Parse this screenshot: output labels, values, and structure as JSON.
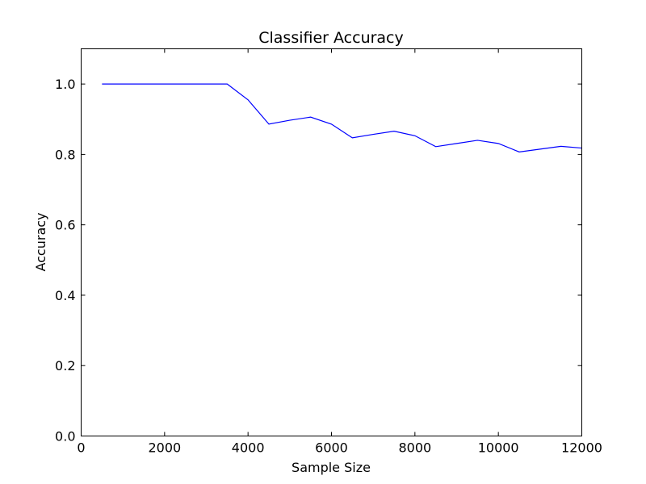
{
  "chart_data": {
    "type": "line",
    "title": "Classifier Accuracy",
    "xlabel": "Sample Size",
    "ylabel": "Accuracy",
    "xlim": [
      0,
      12000
    ],
    "ylim": [
      0.0,
      1.1
    ],
    "xticks": [
      0,
      2000,
      4000,
      6000,
      8000,
      10000,
      12000
    ],
    "xtick_labels": [
      "0",
      "2000",
      "4000",
      "6000",
      "8000",
      "10000",
      "12000"
    ],
    "yticks": [
      0.0,
      0.2,
      0.4,
      0.6,
      0.8,
      1.0
    ],
    "ytick_labels": [
      "0.0",
      "0.2",
      "0.4",
      "0.6",
      "0.8",
      "1.0"
    ],
    "grid": false,
    "series": [
      {
        "color": "#0000ff",
        "x": [
          500,
          1000,
          1500,
          2000,
          2500,
          3000,
          3500,
          4000,
          4500,
          5000,
          5500,
          6000,
          6500,
          7000,
          7500,
          8000,
          8500,
          9000,
          9500,
          10000,
          10500,
          11000,
          11500,
          12000
        ],
        "y": [
          1.0,
          1.0,
          1.0,
          1.0,
          1.0,
          1.0,
          1.0,
          0.955,
          0.886,
          0.897,
          0.906,
          0.886,
          0.847,
          0.857,
          0.866,
          0.853,
          0.822,
          0.831,
          0.84,
          0.831,
          0.807,
          0.815,
          0.823,
          0.818
        ]
      }
    ]
  }
}
